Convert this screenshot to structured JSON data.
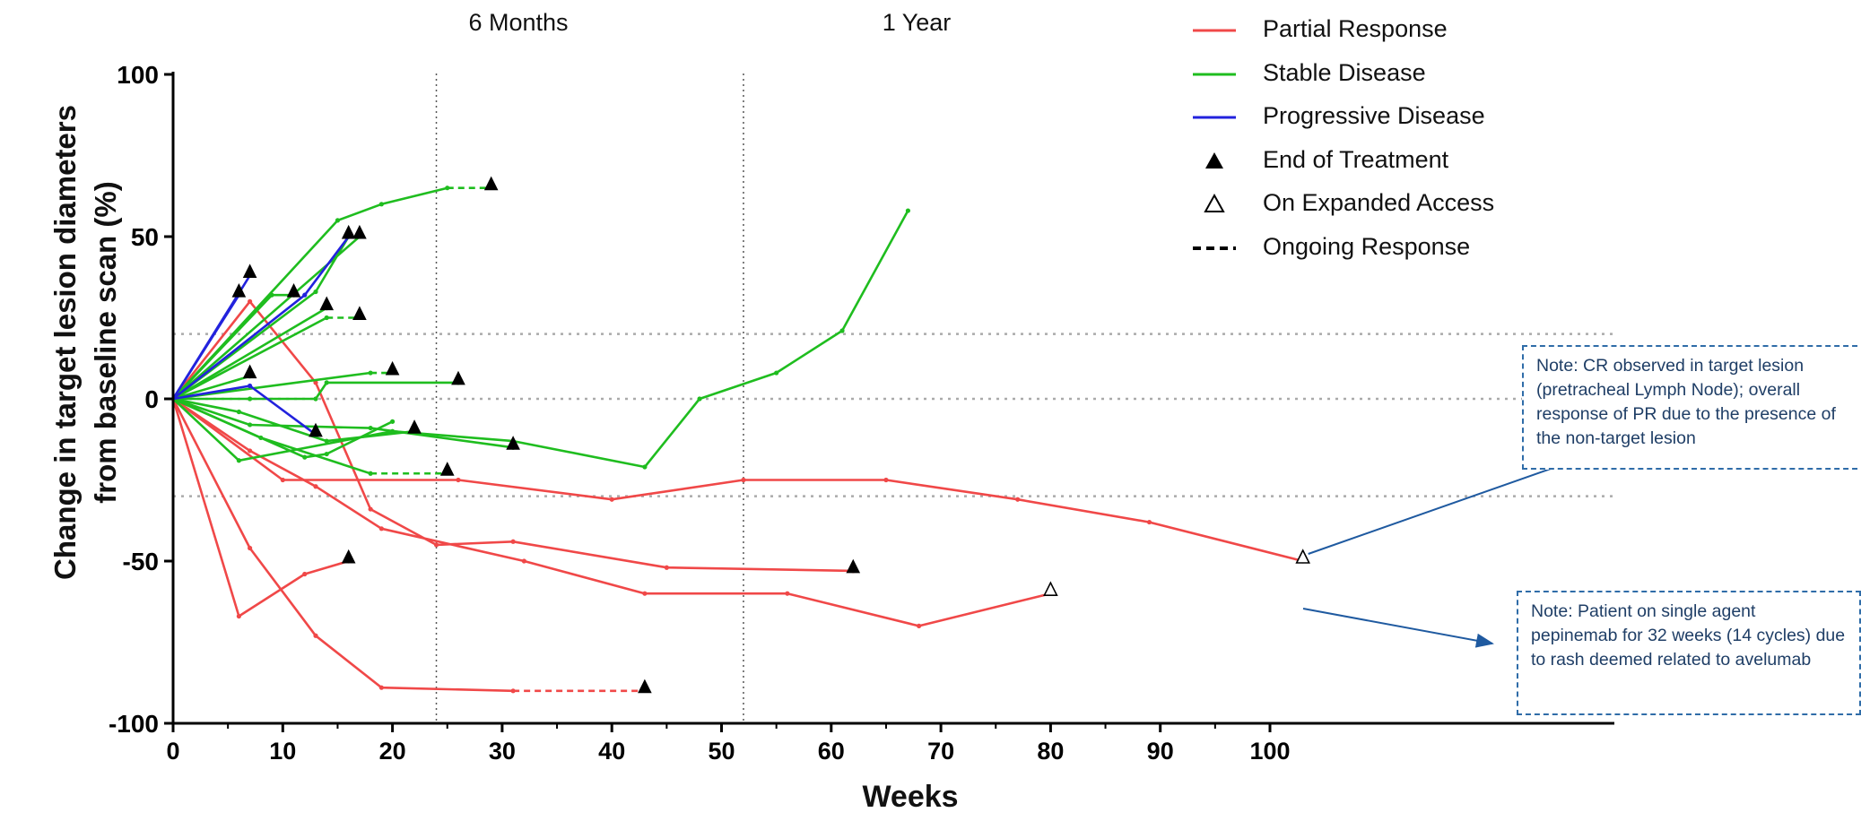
{
  "chart_data": {
    "type": "line",
    "xlabel": "Weeks",
    "ylabel": "Change in target lesion diameters from baseline scan (%)",
    "xlim": [
      0,
      105
    ],
    "ylim": [
      -100,
      100
    ],
    "xticks": [
      0,
      10,
      20,
      30,
      40,
      50,
      60,
      70,
      80,
      90,
      100
    ],
    "yticks": [
      100,
      50,
      0,
      -50,
      -100
    ],
    "colors": {
      "Partial Response": "#f04848",
      "Stable Disease": "#1fbd1f",
      "Progressive Disease": "#2222dd"
    },
    "reference_lines": [
      {
        "axis": "x",
        "value": 24,
        "label": "6 Months"
      },
      {
        "axis": "x",
        "value": 52,
        "label": "1 Year"
      },
      {
        "axis": "y",
        "value": 20
      },
      {
        "axis": "y",
        "value": 0
      },
      {
        "axis": "y",
        "value": -30
      }
    ],
    "legend": [
      {
        "label": "Partial Response",
        "symbol": "red-line"
      },
      {
        "label": "Stable Disease",
        "symbol": "green-line"
      },
      {
        "label": "Progressive Disease",
        "symbol": "blue-line"
      },
      {
        "label": "End of Treatment",
        "symbol": "filled-triangle"
      },
      {
        "label": "On Expanded Access",
        "symbol": "open-triangle"
      },
      {
        "label": "Ongoing Response",
        "symbol": "dashed-line"
      }
    ],
    "series": [
      {
        "response": "Partial Response",
        "points": [
          [
            0,
            0
          ],
          [
            6,
            -67
          ],
          [
            12,
            -54
          ],
          [
            16,
            -50
          ]
        ],
        "end": "eot"
      },
      {
        "response": "Partial Response",
        "points": [
          [
            0,
            0
          ],
          [
            7,
            -46
          ],
          [
            13,
            -73
          ],
          [
            19,
            -89
          ],
          [
            31,
            -90
          ]
        ],
        "ongoing": [
          [
            31,
            -90
          ],
          [
            43,
            -90
          ]
        ],
        "end": "eot"
      },
      {
        "response": "Partial Response",
        "points": [
          [
            0,
            0
          ],
          [
            7,
            30
          ],
          [
            13,
            5
          ],
          [
            18,
            -34
          ],
          [
            24,
            -45
          ],
          [
            31,
            -44
          ],
          [
            45,
            -52
          ],
          [
            62,
            -53
          ]
        ],
        "end": "eot"
      },
      {
        "response": "Partial Response",
        "points": [
          [
            0,
            0
          ],
          [
            7,
            -16
          ],
          [
            13,
            -27
          ],
          [
            19,
            -40
          ],
          [
            32,
            -50
          ],
          [
            43,
            -60
          ],
          [
            56,
            -60
          ],
          [
            68,
            -70
          ],
          [
            80,
            -60
          ]
        ],
        "end": "ea"
      },
      {
        "response": "Partial Response",
        "points": [
          [
            0,
            0
          ],
          [
            10,
            -25
          ],
          [
            26,
            -25
          ],
          [
            40,
            -31
          ],
          [
            52,
            -25
          ],
          [
            65,
            -25
          ],
          [
            77,
            -31
          ],
          [
            89,
            -38
          ],
          [
            103,
            -50
          ]
        ],
        "end": "ea"
      },
      {
        "response": "Stable Disease",
        "points": [
          [
            0,
            0
          ],
          [
            15,
            55
          ],
          [
            19,
            60
          ],
          [
            25,
            65
          ]
        ],
        "ongoing": [
          [
            25,
            65
          ],
          [
            29,
            65
          ]
        ],
        "end": "eot"
      },
      {
        "response": "Stable Disease",
        "points": [
          [
            0,
            0
          ],
          [
            17,
            50
          ]
        ],
        "end": "eot"
      },
      {
        "response": "Stable Disease",
        "points": [
          [
            0,
            0
          ],
          [
            9,
            32
          ],
          [
            11,
            32
          ]
        ],
        "end": "eot"
      },
      {
        "response": "Stable Disease",
        "points": [
          [
            0,
            0
          ],
          [
            13,
            33
          ],
          [
            16,
            50
          ]
        ],
        "end": "eot"
      },
      {
        "response": "Stable Disease",
        "points": [
          [
            0,
            0
          ],
          [
            14,
            25
          ]
        ],
        "ongoing": [
          [
            14,
            25
          ],
          [
            17,
            25
          ]
        ],
        "end": "eot"
      },
      {
        "response": "Stable Disease",
        "points": [
          [
            0,
            0
          ],
          [
            14,
            28
          ]
        ],
        "end": "eot"
      },
      {
        "response": "Stable Disease",
        "points": [
          [
            0,
            0
          ],
          [
            18,
            8
          ]
        ],
        "ongoing": [
          [
            18,
            8
          ],
          [
            20,
            8
          ]
        ],
        "end": "eot"
      },
      {
        "response": "Stable Disease",
        "points": [
          [
            0,
            0
          ],
          [
            7,
            7
          ]
        ],
        "end": "eot"
      },
      {
        "response": "Stable Disease",
        "points": [
          [
            0,
            0
          ],
          [
            7,
            0
          ],
          [
            13,
            0
          ],
          [
            14,
            5
          ],
          [
            26,
            5
          ]
        ],
        "end": "eot"
      },
      {
        "response": "Stable Disease",
        "points": [
          [
            0,
            0
          ],
          [
            6,
            -19
          ],
          [
            20,
            -10
          ],
          [
            31,
            -13
          ],
          [
            43,
            -21
          ],
          [
            48,
            0
          ],
          [
            55,
            8
          ],
          [
            61,
            21
          ],
          [
            67,
            58
          ]
        ],
        "end": "none"
      },
      {
        "response": "Stable Disease",
        "points": [
          [
            0,
            0
          ],
          [
            8,
            -12
          ],
          [
            18,
            -23
          ]
        ],
        "ongoing": [
          [
            18,
            -23
          ],
          [
            25,
            -23
          ]
        ],
        "end": "eot"
      },
      {
        "response": "Stable Disease",
        "points": [
          [
            0,
            0
          ],
          [
            12,
            -18
          ],
          [
            14,
            -17
          ],
          [
            20,
            -7
          ]
        ],
        "end": "none"
      },
      {
        "response": "Stable Disease",
        "points": [
          [
            0,
            0
          ],
          [
            6,
            -4
          ],
          [
            14,
            -13
          ],
          [
            22,
            -10
          ]
        ],
        "end": "eot"
      },
      {
        "response": "Stable Disease",
        "points": [
          [
            0,
            0
          ],
          [
            7,
            -8
          ],
          [
            18,
            -9
          ],
          [
            31,
            -15
          ]
        ],
        "end": "eot"
      },
      {
        "response": "Progressive Disease",
        "points": [
          [
            0,
            0
          ],
          [
            6,
            32
          ]
        ],
        "end": "eot"
      },
      {
        "response": "Progressive Disease",
        "points": [
          [
            0,
            0
          ],
          [
            7,
            38
          ]
        ],
        "end": "eot"
      },
      {
        "response": "Progressive Disease",
        "points": [
          [
            0,
            0
          ],
          [
            12,
            32
          ],
          [
            16,
            50
          ]
        ],
        "end": "none"
      },
      {
        "response": "Progressive Disease",
        "points": [
          [
            0,
            0
          ],
          [
            7,
            4
          ],
          [
            13,
            -11
          ]
        ],
        "end": "eot"
      }
    ],
    "annotations": [
      {
        "text": "Note: CR observed in target lesion (pretracheal Lymph Node); overall response of PR due to the presence of the non-target lesion"
      },
      {
        "text": "Note: Patient on single agent pepinemab for 32 weeks (14 cycles) due to rash deemed related to avelumab"
      }
    ]
  }
}
